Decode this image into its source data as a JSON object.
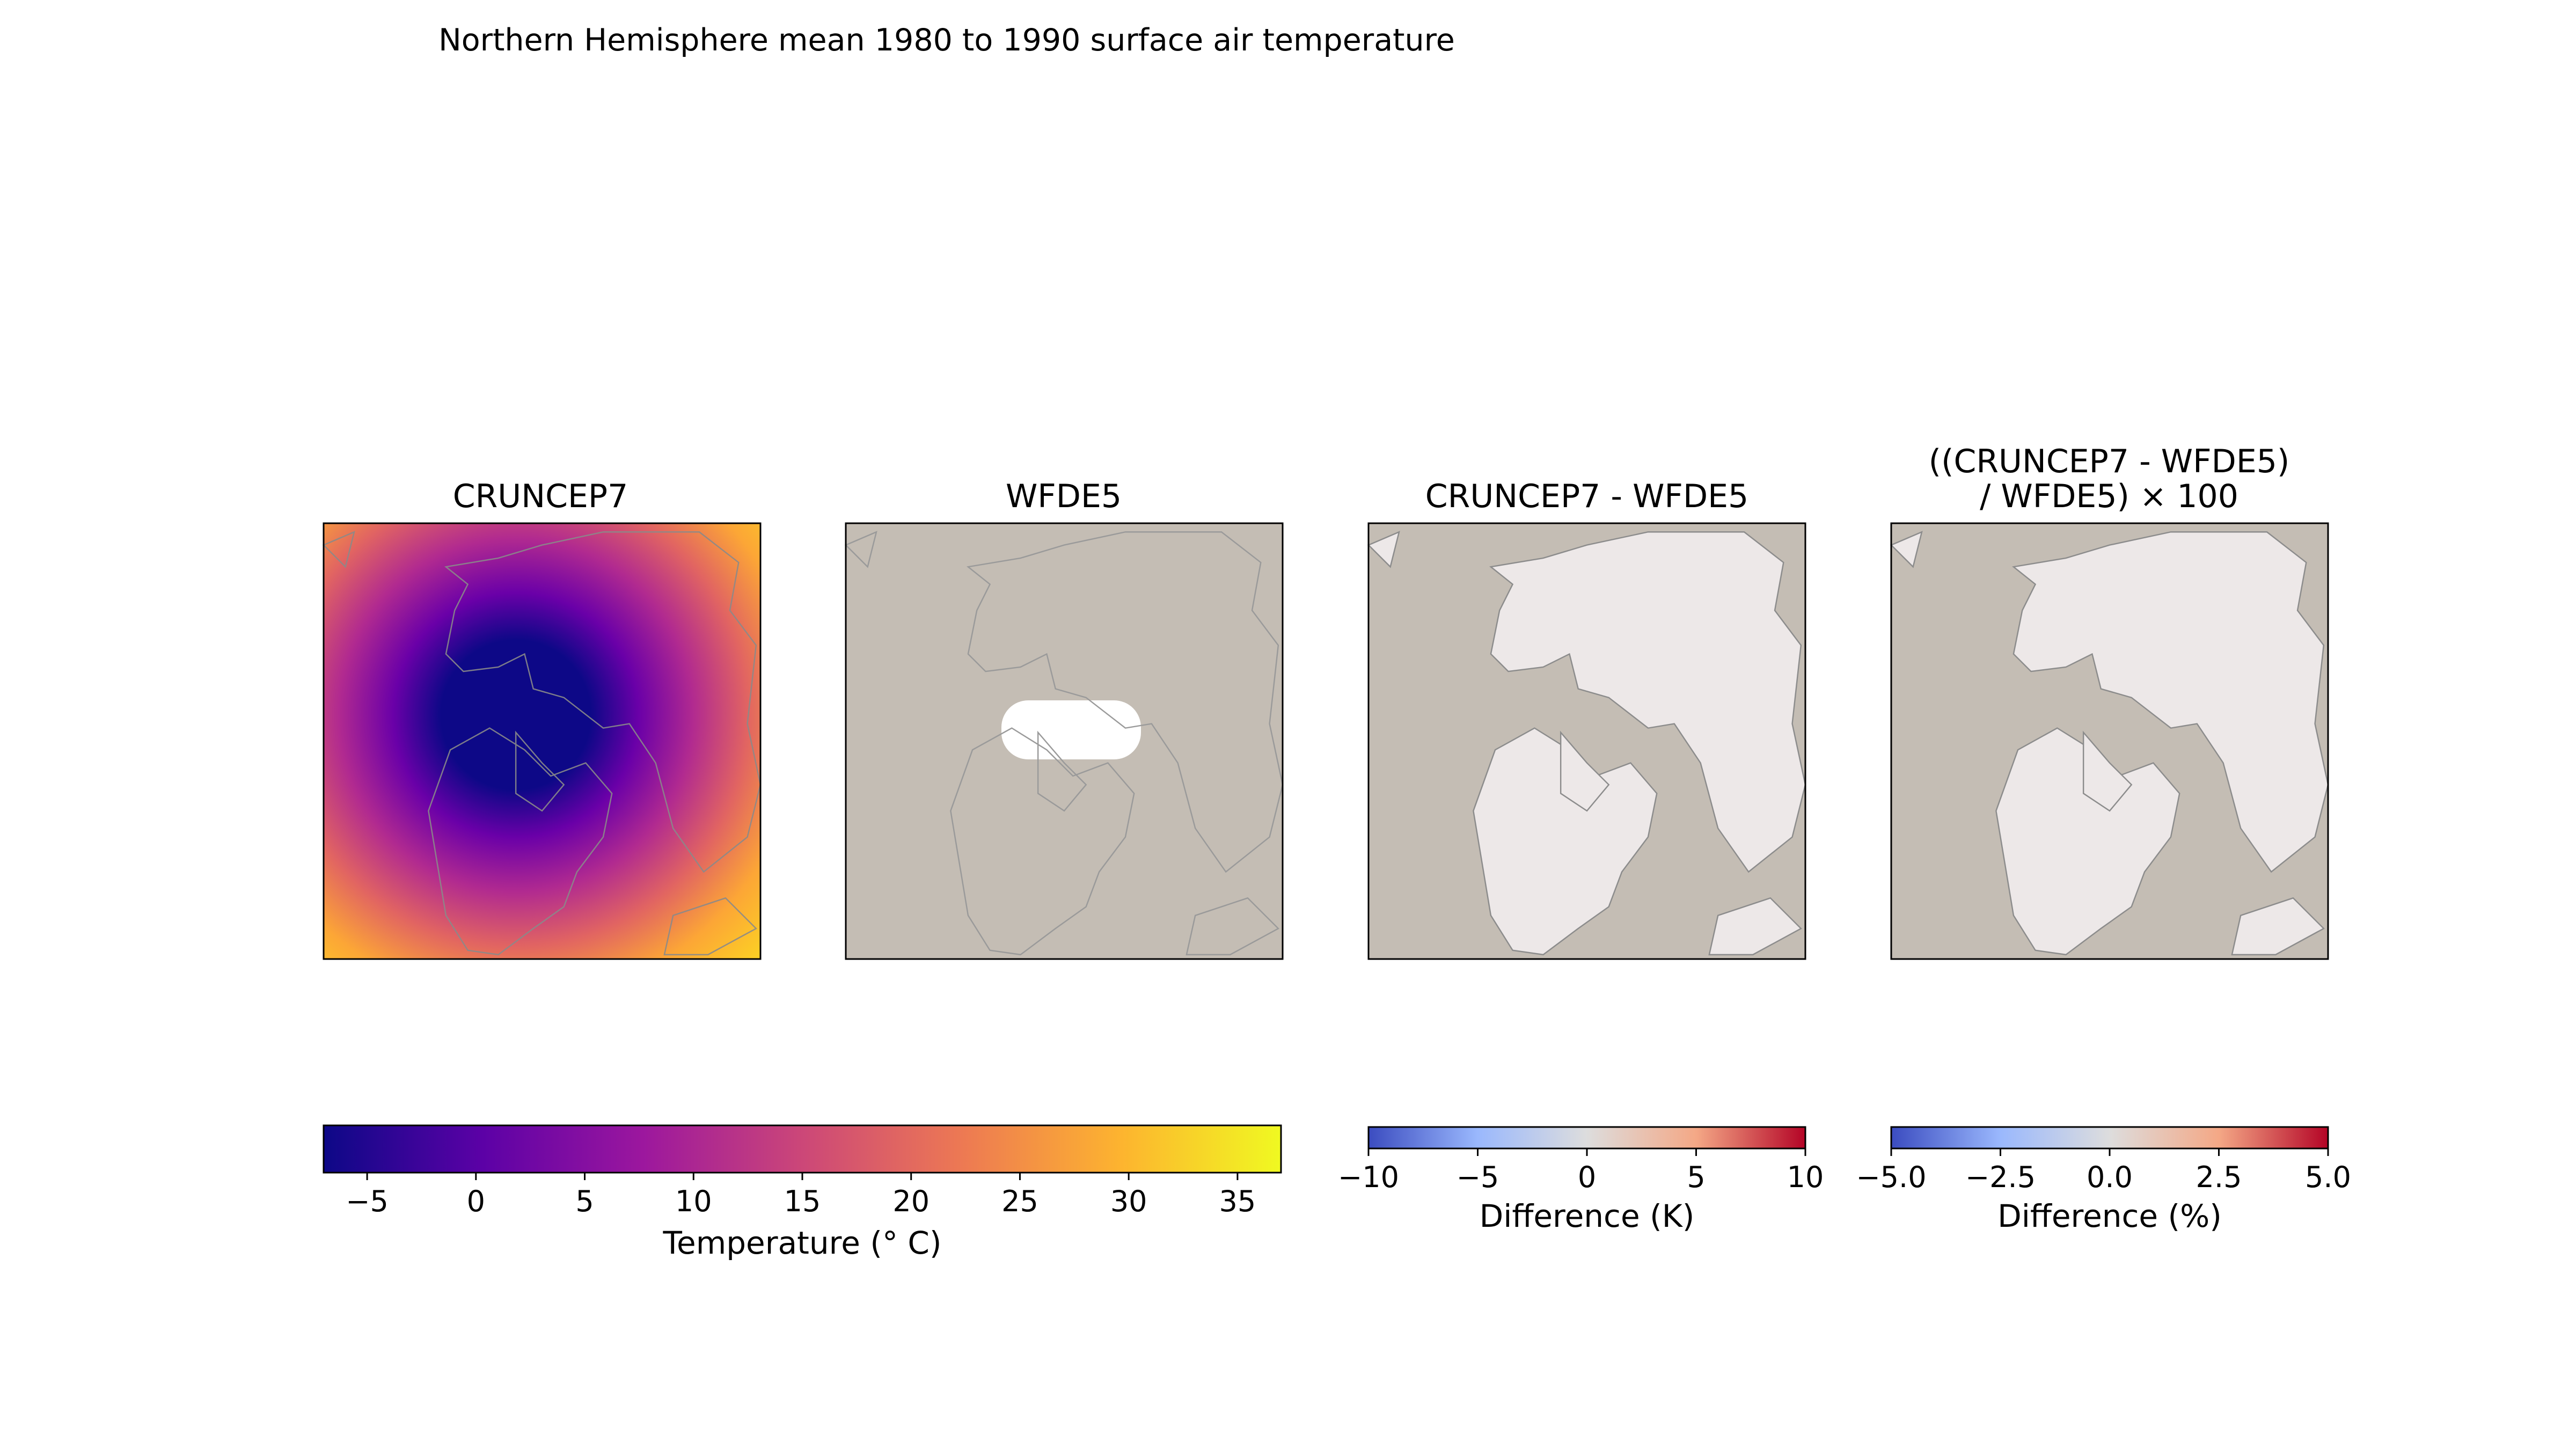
{
  "figure": {
    "suptitle": "Northern Hemisphere mean 1980 to 1990 surface air temperature"
  },
  "chart_data": [
    {
      "type": "heatmap",
      "title": "CRUNCEP7",
      "projection": "north-polar-stereographic",
      "variable": "surface air temperature",
      "colormap": "plasma",
      "colorbar": "temperature",
      "land_only": false
    },
    {
      "type": "heatmap",
      "title": "WFDE5",
      "projection": "north-polar-stereographic",
      "variable": "surface air temperature",
      "colormap": "plasma",
      "colorbar": "temperature",
      "land_only": true,
      "masked_color": "#c4bdb4"
    },
    {
      "type": "heatmap",
      "title": "CRUNCEP7 - WFDE5",
      "projection": "north-polar-stereographic",
      "colormap": "coolwarm",
      "colorbar": "difference_k",
      "land_only": true,
      "masked_color": "#c4bdb4",
      "land_color": "#ede8e8"
    },
    {
      "type": "heatmap",
      "title_lines": [
        "((CRUNCEP7 - WFDE5)",
        "/ WFDE5) × 100"
      ],
      "projection": "north-polar-stereographic",
      "colormap": "coolwarm",
      "colorbar": "difference_pct",
      "land_only": true,
      "masked_color": "#c4bdb4",
      "land_color": "#ede8e8"
    }
  ],
  "colorbars": {
    "temperature": {
      "label": "Temperature (° C)",
      "range": [
        -7,
        37
      ],
      "ticks": [
        -5,
        0,
        5,
        10,
        15,
        20,
        25,
        30,
        35
      ],
      "tick_labels": [
        "−5",
        "0",
        "5",
        "10",
        "15",
        "20",
        "25",
        "30",
        "35"
      ],
      "stops": [
        "#0d0887",
        "#5c01a6",
        "#9c179e",
        "#cc4778",
        "#ed7953",
        "#fdb42f",
        "#f0f921"
      ]
    },
    "difference_k": {
      "label": "Difference (K)",
      "range": [
        -10,
        10
      ],
      "ticks": [
        -10,
        -5,
        0,
        5,
        10
      ],
      "tick_labels": [
        "−10",
        "−5",
        "0",
        "5",
        "10"
      ],
      "stops": [
        "#3b4cc0",
        "#9ab8fd",
        "#dddddd",
        "#f4a886",
        "#b40426"
      ]
    },
    "difference_pct": {
      "label": "Difference (%)",
      "range": [
        -5,
        5
      ],
      "ticks": [
        -5,
        -2.5,
        0,
        2.5,
        5
      ],
      "tick_labels": [
        "−5.0",
        "−2.5",
        "0.0",
        "2.5",
        "5.0"
      ],
      "stops": [
        "#3b4cc0",
        "#9ab8fd",
        "#dddddd",
        "#f4a886",
        "#b40426"
      ]
    }
  }
}
